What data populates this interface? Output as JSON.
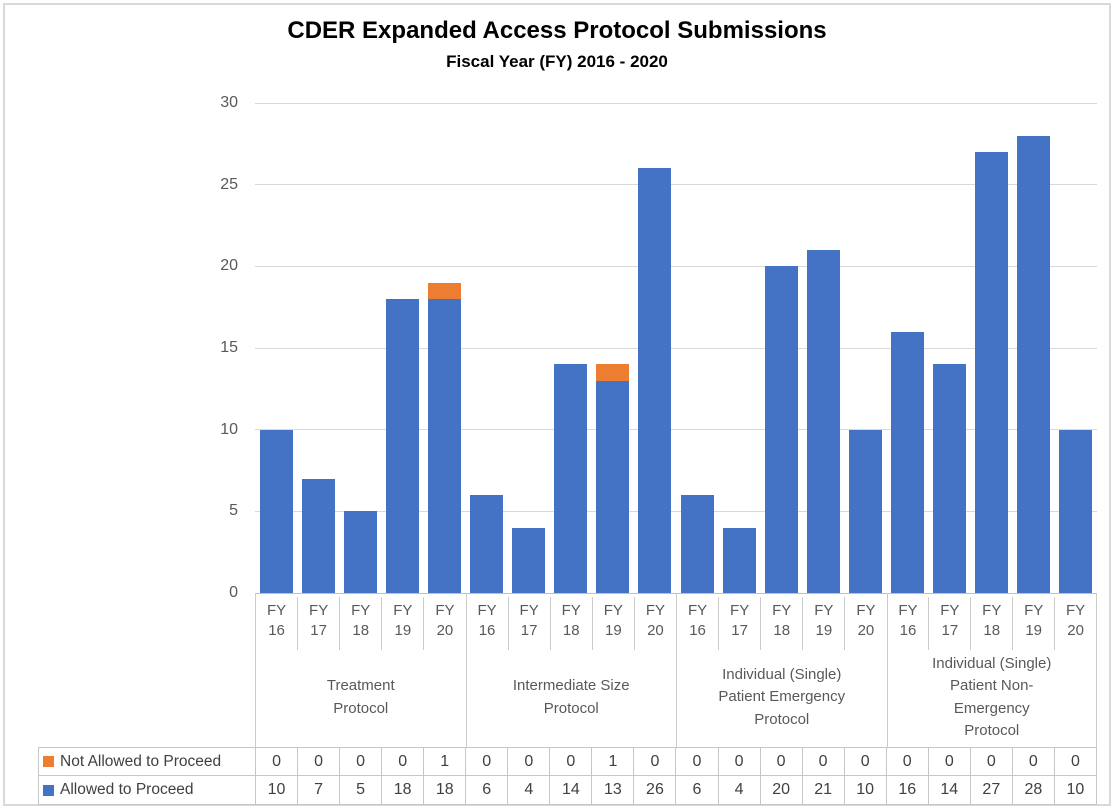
{
  "chart_data": {
    "type": "bar",
    "stacked": true,
    "title": "CDER Expanded Access Protocol Submissions",
    "subtitle": "Fiscal Year (FY) 2016 - 2020",
    "xlabel": "",
    "ylabel": "",
    "ylim": [
      0,
      30
    ],
    "yticks": [
      0,
      5,
      10,
      15,
      20,
      25,
      30
    ],
    "grid": "horizontal",
    "legend_position": "bottom-left data table",
    "fy_prefix": "FY",
    "groups": [
      {
        "label_lines": [
          "Treatment",
          "Protocol"
        ],
        "years": [
          "16",
          "17",
          "18",
          "19",
          "20"
        ]
      },
      {
        "label_lines": [
          "Intermediate Size",
          "Protocol"
        ],
        "years": [
          "16",
          "17",
          "18",
          "19",
          "20"
        ]
      },
      {
        "label_lines": [
          "Individual (Single)",
          "Patient Emergency",
          "Protocol"
        ],
        "years": [
          "16",
          "17",
          "18",
          "19",
          "20"
        ]
      },
      {
        "label_lines": [
          "Individual (Single)",
          "Patient Non-",
          "Emergency",
          "Protocol"
        ],
        "years": [
          "16",
          "17",
          "18",
          "19",
          "20"
        ]
      }
    ],
    "series": [
      {
        "name": "Not Allowed to Proceed",
        "color": "#ED7D31",
        "values": [
          0,
          0,
          0,
          0,
          1,
          0,
          0,
          0,
          1,
          0,
          0,
          0,
          0,
          0,
          0,
          0,
          0,
          0,
          0,
          0
        ]
      },
      {
        "name": "Allowed to Proceed",
        "color": "#4472C4",
        "values": [
          10,
          7,
          5,
          18,
          18,
          6,
          4,
          14,
          13,
          26,
          6,
          4,
          20,
          21,
          10,
          16,
          14,
          27,
          28,
          10
        ]
      }
    ],
    "colors": {
      "allowed": "#4472C4",
      "not_allowed": "#ED7D31",
      "gridline": "#D9D9D9",
      "axis_line": "#BFBFBF",
      "axis_text": "#595959",
      "table_text": "#404040",
      "table_border": "#C6C6C6"
    }
  }
}
